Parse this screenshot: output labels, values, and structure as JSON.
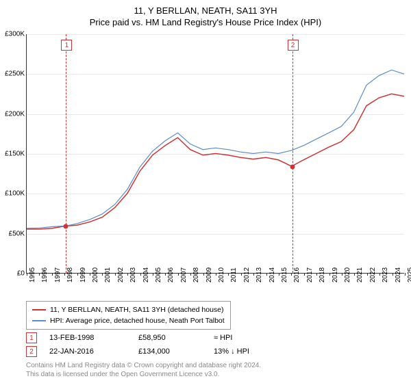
{
  "title_main": "11, Y BERLLAN, NEATH, SA11 3YH",
  "title_sub": "Price paid vs. HM Land Registry's House Price Index (HPI)",
  "chart": {
    "type": "line",
    "xlim": [
      1995,
      2025
    ],
    "ylim": [
      0,
      300000
    ],
    "ytick_step": 50000,
    "yticks": [
      0,
      50000,
      100000,
      150000,
      200000,
      250000,
      300000
    ],
    "ytick_labels": [
      "£0",
      "£50K",
      "£100K",
      "£150K",
      "£200K",
      "£250K",
      "£300K"
    ],
    "xticks": [
      1995,
      1996,
      1997,
      1998,
      1999,
      2000,
      2001,
      2002,
      2003,
      2004,
      2005,
      2006,
      2007,
      2008,
      2009,
      2010,
      2011,
      2012,
      2013,
      2014,
      2015,
      2016,
      2017,
      2018,
      2019,
      2020,
      2021,
      2022,
      2023,
      2024,
      2025
    ],
    "grid_color": "#e8e8e8",
    "axis_color": "#333333",
    "background_color": "#ffffff",
    "flag_color": "#cc3333",
    "series": [
      {
        "name": "property",
        "label": "11, Y BERLLAN, NEATH, SA11 3YH (detached house)",
        "color": "#cc3333",
        "width": 1.5,
        "data": [
          [
            1995,
            55000
          ],
          [
            1996,
            55000
          ],
          [
            1997,
            56000
          ],
          [
            1998.12,
            58950
          ],
          [
            1999,
            60000
          ],
          [
            2000,
            64000
          ],
          [
            2001,
            70000
          ],
          [
            2002,
            82000
          ],
          [
            2003,
            100000
          ],
          [
            2004,
            128000
          ],
          [
            2005,
            148000
          ],
          [
            2006,
            160000
          ],
          [
            2007,
            170000
          ],
          [
            2008,
            155000
          ],
          [
            2009,
            148000
          ],
          [
            2010,
            150000
          ],
          [
            2011,
            148000
          ],
          [
            2012,
            145000
          ],
          [
            2013,
            143000
          ],
          [
            2014,
            145000
          ],
          [
            2015,
            142000
          ],
          [
            2016.06,
            134000
          ],
          [
            2017,
            142000
          ],
          [
            2018,
            150000
          ],
          [
            2019,
            158000
          ],
          [
            2020,
            165000
          ],
          [
            2021,
            180000
          ],
          [
            2022,
            210000
          ],
          [
            2023,
            220000
          ],
          [
            2024,
            225000
          ],
          [
            2025,
            222000
          ]
        ]
      },
      {
        "name": "hpi",
        "label": "HPI: Average price, detached house, Neath Port Talbot",
        "color": "#5b8bc9",
        "width": 1.2,
        "data": [
          [
            1995,
            56000
          ],
          [
            1996,
            56500
          ],
          [
            1997,
            58000
          ],
          [
            1998.12,
            59000
          ],
          [
            1999,
            62000
          ],
          [
            2000,
            67000
          ],
          [
            2001,
            74000
          ],
          [
            2002,
            86000
          ],
          [
            2003,
            105000
          ],
          [
            2004,
            133000
          ],
          [
            2005,
            153000
          ],
          [
            2006,
            166000
          ],
          [
            2007,
            176000
          ],
          [
            2008,
            162000
          ],
          [
            2009,
            155000
          ],
          [
            2010,
            157000
          ],
          [
            2011,
            155000
          ],
          [
            2012,
            152000
          ],
          [
            2013,
            150000
          ],
          [
            2014,
            152000
          ],
          [
            2015,
            150000
          ],
          [
            2016.06,
            154000
          ],
          [
            2017,
            160000
          ],
          [
            2018,
            168000
          ],
          [
            2019,
            176000
          ],
          [
            2020,
            184000
          ],
          [
            2021,
            202000
          ],
          [
            2022,
            236000
          ],
          [
            2023,
            248000
          ],
          [
            2024,
            255000
          ],
          [
            2025,
            250000
          ]
        ]
      }
    ],
    "markers": [
      {
        "x": 1998.12,
        "y": 58950
      },
      {
        "x": 2016.06,
        "y": 134000
      }
    ],
    "flags": [
      {
        "n": "1",
        "x": 1998.12
      },
      {
        "n": "2",
        "x": 2016.06
      }
    ]
  },
  "legend": {
    "items": [
      {
        "color": "#cc3333",
        "label": "11, Y BERLLAN, NEATH, SA11 3YH (detached house)"
      },
      {
        "color": "#5b8bc9",
        "label": "HPI: Average price, detached house, Neath Port Talbot"
      }
    ]
  },
  "transactions": [
    {
      "n": "1",
      "date": "13-FEB-1998",
      "price": "£58,950",
      "rel": "≈ HPI"
    },
    {
      "n": "2",
      "date": "22-JAN-2016",
      "price": "£134,000",
      "rel": "13% ↓ HPI"
    }
  ],
  "attribution": {
    "line1": "Contains HM Land Registry data © Crown copyright and database right 2024.",
    "line2": "This data is licensed under the Open Government Licence v3.0."
  }
}
